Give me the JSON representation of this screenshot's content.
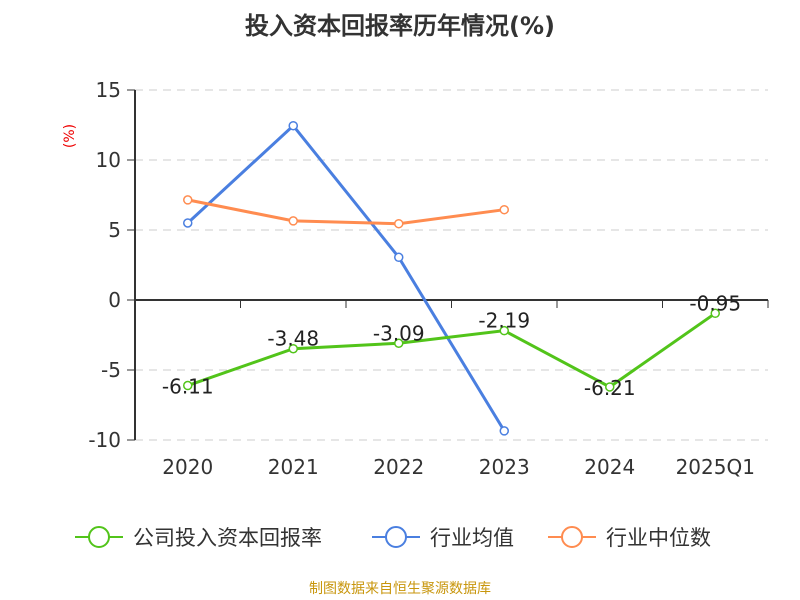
{
  "chart_data": {
    "type": "line",
    "title": "投入资本回报率历年情况(%)",
    "ylabel": "(%)",
    "categories": [
      "2020",
      "2021",
      "2022",
      "2023",
      "2024",
      "2025Q1"
    ],
    "ylim": [
      -10,
      15
    ],
    "yticks": [
      -10,
      -5,
      0,
      5,
      10,
      15
    ],
    "grid": true,
    "legend": "bottom",
    "series": [
      {
        "name": "公司投入资本回报率",
        "color": "#52c41a",
        "values": [
          -6.11,
          -3.48,
          -3.09,
          -2.19,
          -6.21,
          -0.95
        ],
        "labels": [
          "-6.11",
          "-3.48",
          "-3.09",
          "-2.19",
          "-6.21",
          "-0.95"
        ]
      },
      {
        "name": "行业均值",
        "color": "#4a7fe0",
        "values": [
          5.5,
          12.45,
          3.05,
          -9.35,
          null,
          null
        ]
      },
      {
        "name": "行业中位数",
        "color": "#ff8c50",
        "values": [
          7.15,
          5.65,
          5.45,
          6.45,
          null,
          null
        ]
      }
    ]
  },
  "source": "制图数据来自恒生聚源数据库"
}
